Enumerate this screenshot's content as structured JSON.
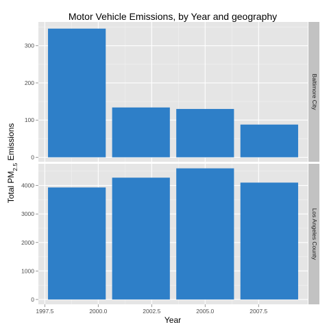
{
  "chart_data": {
    "type": "bar",
    "title": "Motor Vehicle Emissions, by Year and geography",
    "xlabel": "Year",
    "ylabel": {
      "prefix": "Total PM",
      "subscript": "2.5",
      "suffix": " Emissions"
    },
    "x_ticks": [
      "1997.5",
      "2000.0",
      "2002.5",
      "2005.0",
      "2007.5"
    ],
    "x_range": [
      1997.2,
      2009.8
    ],
    "grid": true,
    "bar_color": "#2E7FC8",
    "panel_background": "#E5E5E5",
    "strip_background": "#C2C2C2",
    "panels": [
      {
        "name": "Baltimore City",
        "x": [
          1999,
          2002,
          2005,
          2008
        ],
        "values": [
          346,
          134,
          130,
          88
        ],
        "ylim": [
          -12,
          364
        ],
        "y_ticks": [
          "0",
          "100",
          "200",
          "300"
        ]
      },
      {
        "name": "Los Angeles County",
        "x": [
          1999,
          2002,
          2005,
          2008
        ],
        "values": [
          3931,
          4274,
          4601,
          4101
        ],
        "ylim": [
          -170,
          4760
        ],
        "y_ticks": [
          "0",
          "1000",
          "2000",
          "3000",
          "4000"
        ]
      }
    ]
  }
}
